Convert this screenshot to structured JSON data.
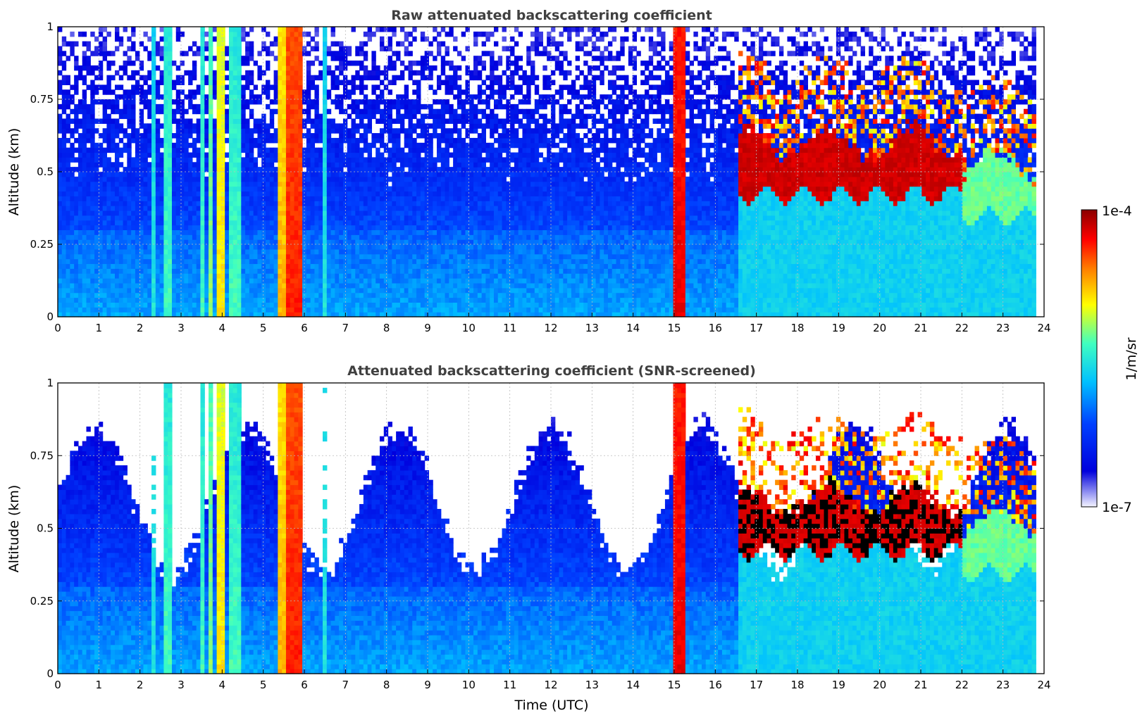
{
  "chart_data": [
    {
      "type": "heatmap",
      "title": "Raw attenuated backscattering coefficient",
      "xlabel": "",
      "ylabel": "Altitude (km)",
      "xlim": [
        0,
        24
      ],
      "ylim": [
        0,
        1
      ],
      "x_ticks": [
        "0",
        "1",
        "2",
        "3",
        "4",
        "5",
        "6",
        "7",
        "8",
        "9",
        "10",
        "11",
        "12",
        "13",
        "14",
        "15",
        "16",
        "17",
        "18",
        "19",
        "20",
        "21",
        "22",
        "23",
        "24"
      ],
      "y_ticks": [
        "0",
        "0.25",
        "0.5",
        "0.75",
        "1"
      ],
      "grid": true,
      "data_extent_x": [
        0,
        23.8
      ],
      "features": [
        {
          "kind": "rain",
          "x_from": 2.3,
          "x_to": 2.4,
          "intensity": 0.45
        },
        {
          "kind": "rain",
          "x_from": 2.6,
          "x_to": 2.75,
          "intensity": 0.5
        },
        {
          "kind": "rain",
          "x_from": 3.45,
          "x_to": 3.55,
          "intensity": 0.5
        },
        {
          "kind": "rain",
          "x_from": 3.65,
          "x_to": 3.8,
          "intensity": 0.55
        },
        {
          "kind": "rain",
          "x_from": 3.9,
          "x_to": 4.1,
          "intensity": 0.65
        },
        {
          "kind": "rain",
          "x_from": 4.2,
          "x_to": 4.45,
          "intensity": 0.5
        },
        {
          "kind": "rain",
          "x_from": 5.4,
          "x_to": 5.6,
          "intensity": 0.7
        },
        {
          "kind": "rain",
          "x_from": 5.6,
          "x_to": 5.95,
          "intensity": 0.85
        },
        {
          "kind": "rain",
          "x_from": 6.45,
          "x_to": 6.55,
          "intensity": 0.45
        },
        {
          "kind": "rain",
          "x_from": 14.95,
          "x_to": 15.3,
          "intensity": 0.9
        },
        {
          "kind": "cloud_layer",
          "x_from": 16.6,
          "x_to": 22.0,
          "base_km": 0.42,
          "top_km": 0.58,
          "intensity": 0.95
        },
        {
          "kind": "cloud_layer",
          "x_from": 22.0,
          "x_to": 23.8,
          "base_km": 0.35,
          "top_km": 0.5,
          "intensity": 0.55
        }
      ]
    },
    {
      "type": "heatmap",
      "title": "Attenuated backscattering coefficient (SNR-screened)",
      "xlabel": "Time (UTC)",
      "ylabel": "Altitude (km)",
      "xlim": [
        0,
        24
      ],
      "ylim": [
        0,
        1
      ],
      "x_ticks": [
        "0",
        "1",
        "2",
        "3",
        "4",
        "5",
        "6",
        "7",
        "8",
        "9",
        "10",
        "11",
        "12",
        "13",
        "14",
        "15",
        "16",
        "17",
        "18",
        "19",
        "20",
        "21",
        "22",
        "23",
        "24"
      ],
      "y_ticks": [
        "0",
        "0.25",
        "0.5",
        "0.75",
        "1"
      ],
      "grid": true,
      "data_extent_x": [
        0,
        23.8
      ],
      "screened": true
    }
  ],
  "colorbar": {
    "label": "1/m/sr",
    "min_label": "1e-7",
    "max_label": "1e-4",
    "scale": "log",
    "colormap": "jet",
    "colors": [
      "#f4f4ff",
      "#0000dd",
      "#0040ff",
      "#00c0ff",
      "#40ffc0",
      "#ffff00",
      "#ff8000",
      "#ff0000",
      "#8b0000"
    ]
  }
}
